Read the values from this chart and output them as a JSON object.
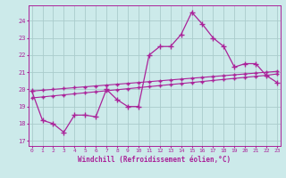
{
  "xlabel": "Windchill (Refroidissement éolien,°C)",
  "bg_color": "#cceaea",
  "line_color": "#aa2299",
  "grid_color": "#aacccc",
  "x_values": [
    0,
    1,
    2,
    3,
    4,
    5,
    6,
    7,
    8,
    9,
    10,
    11,
    12,
    13,
    14,
    15,
    16,
    17,
    18,
    19,
    20,
    21,
    22,
    23
  ],
  "line1_y": [
    19.9,
    18.2,
    18.0,
    17.5,
    18.5,
    18.5,
    18.4,
    20.0,
    19.4,
    19.0,
    19.0,
    22.0,
    22.5,
    22.5,
    23.2,
    24.5,
    23.8,
    23.0,
    22.5,
    21.3,
    21.5,
    21.5,
    20.8,
    20.4
  ],
  "line2_y": [
    19.9,
    19.95,
    20.0,
    20.05,
    20.1,
    20.15,
    20.2,
    20.25,
    20.3,
    20.35,
    20.4,
    20.45,
    20.5,
    20.55,
    20.6,
    20.65,
    20.7,
    20.75,
    20.8,
    20.85,
    20.9,
    20.95,
    21.0,
    21.05
  ],
  "line3_y": [
    19.5,
    19.56,
    19.62,
    19.68,
    19.74,
    19.8,
    19.86,
    19.92,
    19.98,
    20.04,
    20.1,
    20.16,
    20.22,
    20.28,
    20.34,
    20.4,
    20.46,
    20.52,
    20.58,
    20.64,
    20.7,
    20.76,
    20.82,
    20.9
  ],
  "xlim": [
    -0.3,
    23.3
  ],
  "ylim": [
    16.7,
    24.9
  ],
  "yticks": [
    17,
    18,
    19,
    20,
    21,
    22,
    23,
    24
  ],
  "xticks": [
    0,
    1,
    2,
    3,
    4,
    5,
    6,
    7,
    8,
    9,
    10,
    11,
    12,
    13,
    14,
    15,
    16,
    17,
    18,
    19,
    20,
    21,
    22,
    23
  ]
}
